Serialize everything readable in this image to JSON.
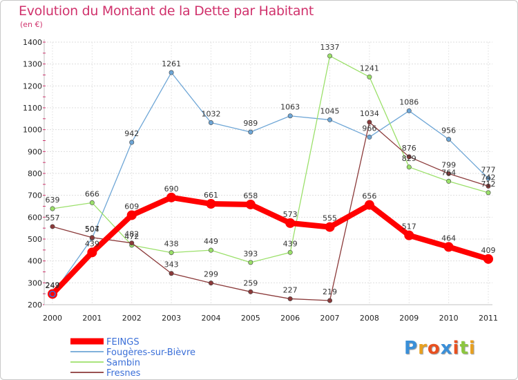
{
  "chart_data": {
    "type": "line",
    "title": "Evolution du Montant de la Dette par Habitant",
    "subtitle": "(en €)",
    "x": [
      "2000",
      "2001",
      "2002",
      "2003",
      "2004",
      "2005",
      "2006",
      "2007",
      "2008",
      "2009",
      "2010",
      "2011"
    ],
    "ylim": [
      200,
      1400
    ],
    "yticks": [
      200,
      300,
      400,
      500,
      600,
      700,
      800,
      900,
      1000,
      1100,
      1200,
      1300,
      1400
    ],
    "grid": true,
    "legend_position": "bottom-left",
    "series": [
      {
        "name": "FEINGS",
        "color": "#ff0000",
        "values": [
          249,
          439,
          609,
          690,
          661,
          658,
          573,
          555,
          656,
          517,
          464,
          409
        ]
      },
      {
        "name": "Fougères-sur-Bièvre",
        "color": "#6ea6d6",
        "values": [
          247,
          504,
          942,
          1261,
          1032,
          989,
          1063,
          1045,
          966,
          1086,
          956,
          777
        ]
      },
      {
        "name": "Sambin",
        "color": "#9be06a",
        "values": [
          639,
          666,
          472,
          438,
          449,
          393,
          439,
          1337,
          1241,
          829,
          764,
          712
        ]
      },
      {
        "name": "Fresnes",
        "color": "#8b3a3a",
        "values": [
          557,
          507,
          482,
          343,
          299,
          259,
          227,
          219,
          1034,
          876,
          799,
          742
        ]
      }
    ]
  },
  "brand": {
    "letters": [
      "P",
      "r",
      "o",
      "x",
      "i",
      "t",
      "i"
    ],
    "colors": [
      "#3a8fd8",
      "#e8a020",
      "#e85020",
      "#3a8fd8",
      "#e85020",
      "#8cc63f",
      "#e8a020"
    ]
  }
}
